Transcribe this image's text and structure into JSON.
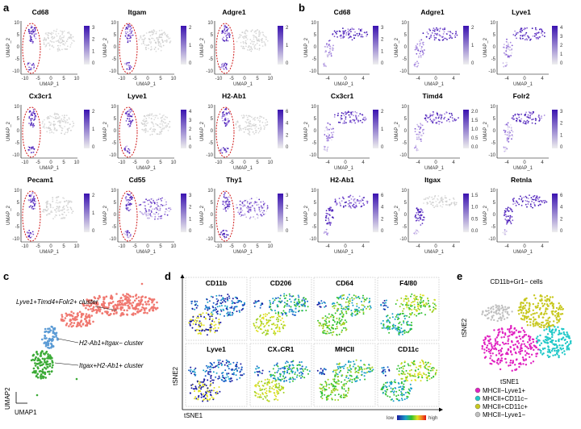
{
  "panel_labels": {
    "a": "a",
    "b": "b",
    "c": "c",
    "d": "d",
    "e": "e"
  },
  "panel_a": {
    "xlabel": "UMAP_1",
    "ylabel": "UMAP_2",
    "x_ticks": [
      "-10",
      "-5",
      "0",
      "5",
      "10"
    ],
    "y_ticks": [
      "10",
      "5",
      "0",
      "-5",
      "-10"
    ],
    "plots": [
      {
        "gene": "Cd68",
        "scale": [
          "3",
          "2",
          "1",
          "0"
        ]
      },
      {
        "gene": "Itgam",
        "scale": [
          "2",
          "1",
          "0"
        ]
      },
      {
        "gene": "Adgre1",
        "scale": [
          "2",
          "1",
          "0"
        ]
      },
      {
        "gene": "Cx3cr1",
        "scale": [
          "2",
          "1",
          "0"
        ]
      },
      {
        "gene": "Lyve1",
        "scale": [
          "4",
          "3",
          "2",
          "1",
          "0"
        ]
      },
      {
        "gene": "H2-Ab1",
        "scale": [
          "6",
          "4",
          "2",
          "0"
        ]
      },
      {
        "gene": "Pecam1",
        "scale": [
          "2",
          "1",
          "0"
        ]
      },
      {
        "gene": "Cd55",
        "scale": [
          "3",
          "2",
          "1",
          "0"
        ]
      },
      {
        "gene": "Thy1",
        "scale": [
          "3",
          "2",
          "1",
          "0"
        ]
      }
    ]
  },
  "panel_b": {
    "xlabel": "UMAP_1",
    "ylabel": "UMAP_2",
    "x_ticks": [
      "-4",
      "0",
      "4"
    ],
    "y_ticks": [
      "10",
      "5",
      "0",
      "-5",
      "-10"
    ],
    "plots": [
      {
        "gene": "Cd68",
        "scale": [
          "3",
          "2",
          "1",
          "0"
        ]
      },
      {
        "gene": "Adgre1",
        "scale": [
          "2",
          "1",
          "0"
        ]
      },
      {
        "gene": "Lyve1",
        "scale": [
          "4",
          "3",
          "2",
          "1",
          "0"
        ]
      },
      {
        "gene": "Cx3cr1",
        "scale": [
          "2",
          "1",
          "0"
        ]
      },
      {
        "gene": "Timd4",
        "scale": [
          "2.0",
          "1.5",
          "1.0",
          "0.5",
          "0.0"
        ]
      },
      {
        "gene": "Folr2",
        "scale": [
          "3",
          "2",
          "1",
          "0"
        ]
      },
      {
        "gene": "H2-Ab1",
        "scale": [
          "6",
          "4",
          "2",
          "0"
        ]
      },
      {
        "gene": "Itgax",
        "scale": [
          "1.5",
          "1.0",
          "0.5",
          "0.0"
        ]
      },
      {
        "gene": "Retnla",
        "scale": [
          "6",
          "4",
          "2",
          "0"
        ]
      }
    ]
  },
  "panel_c": {
    "clusters": [
      {
        "label": "Lyve1+Timd4+Folr2+ cluster",
        "color": "#f07870"
      },
      {
        "label": "H2-Ab1+Itgax− cluster",
        "color": "#5b9bd5"
      },
      {
        "label": "Itgax+H2-Ab1+ cluster",
        "color": "#3aaa35"
      }
    ],
    "xlabel": "UMAP1",
    "ylabel": "UMAP2"
  },
  "panel_d": {
    "markers": [
      "CD11b",
      "CD206",
      "CD64",
      "F4/80",
      "Lyve1",
      "CX₃CR1",
      "MHCII",
      "CD11c"
    ],
    "xlabel": "tSNE1",
    "ylabel": "tSNE2",
    "legend_low": "low",
    "legend_high": "high"
  },
  "panel_e": {
    "title": "CD11b+Gr1− cells",
    "xlabel": "tSNE1",
    "ylabel": "tSNE2",
    "legend": [
      {
        "label": "MHCII−Lyve1+",
        "color": "#e020c0"
      },
      {
        "label": "MHCII+CD11c−",
        "color": "#20c8c8"
      },
      {
        "label": "MHCII+CD11c+",
        "color": "#c8c820"
      },
      {
        "label": "MHCII−Lyve1−",
        "color": "#c0c0c0"
      }
    ]
  }
}
